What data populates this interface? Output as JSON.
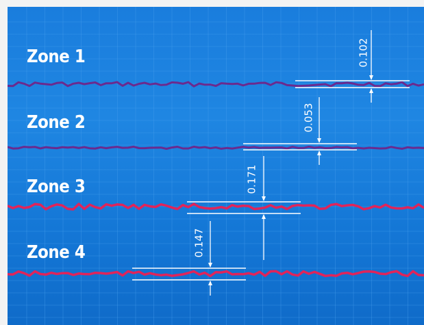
{
  "zones": [
    {
      "label": "Zone 1",
      "color": "#6b2a8e"
    },
    {
      "label": "Zone 2",
      "color": "#6b2a8e"
    },
    {
      "label": "Zone 3",
      "color": "#e0245a"
    },
    {
      "label": "Zone 4",
      "color": "#e0245a"
    }
  ],
  "measurements": [
    {
      "value": "0.102"
    },
    {
      "value": "0.053"
    },
    {
      "value": "0.171"
    },
    {
      "value": "0.147"
    }
  ],
  "colors": {
    "background_top": "#1a7ddd",
    "background_bottom": "#0f6bc9",
    "grid": "#4aa0ee",
    "dimension": "#ffffff",
    "frame": "#f3f3f3"
  }
}
